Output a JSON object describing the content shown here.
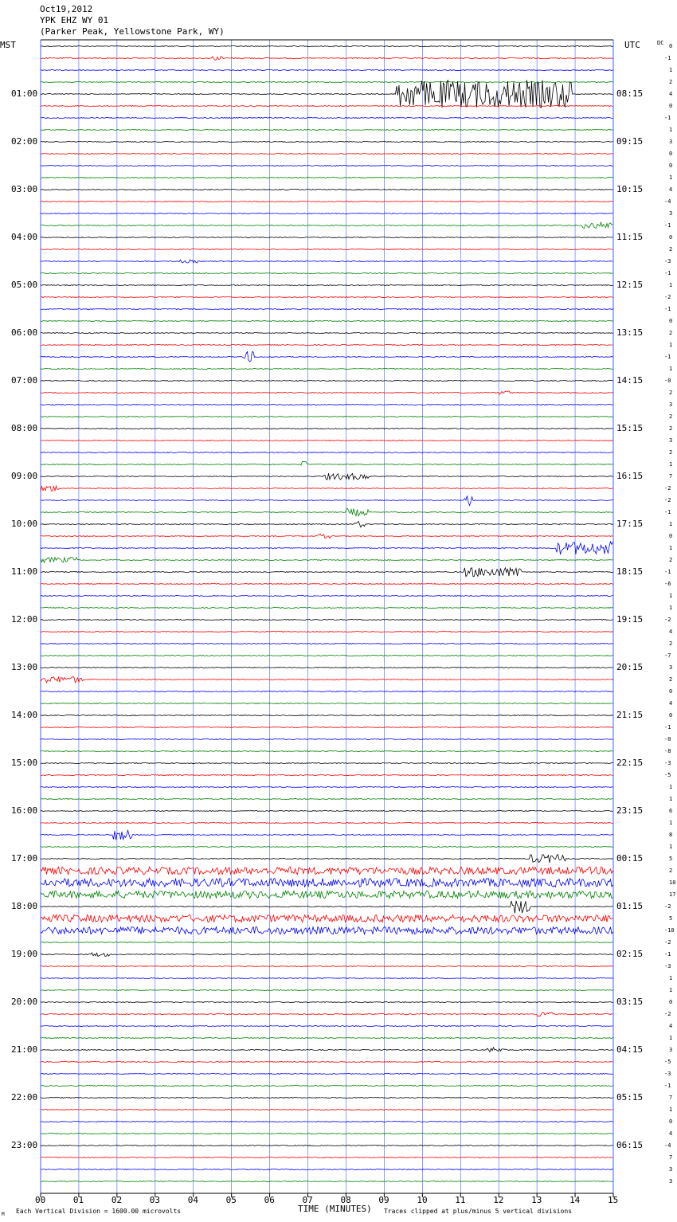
{
  "header": {
    "date": "Oct19,2012",
    "station": "YPK EHZ WY 01",
    "location": "(Parker Peak, Yellowstone Park, WY)"
  },
  "left_zone": "MST",
  "right_zone": "UTC",
  "dc_header": "DC",
  "footer": {
    "scale_note": "Each Vertical Division = 1600.00 microvolts",
    "x_title": "TIME (MINUTES)",
    "clip_note": "Traces clipped at plus/minus 5 vertical divisions",
    "corner_mark": "M"
  },
  "colors": {
    "trace_cycle": [
      "#000000",
      "#ff0000",
      "#0000ff",
      "#008000"
    ],
    "gridline": "#4060ff"
  },
  "chart_data": {
    "type": "line",
    "title": "Oct19,2012 YPK EHZ WY 01 (Parker Peak, Yellowstone Park, WY)",
    "xlabel": "TIME (MINUTES)",
    "x_ticks": [
      "00",
      "01",
      "02",
      "03",
      "04",
      "05",
      "06",
      "07",
      "08",
      "09",
      "10",
      "11",
      "12",
      "13",
      "14",
      "15"
    ],
    "xlim": [
      0,
      15
    ],
    "left_hour_labels": [
      "01:00",
      "02:00",
      "03:00",
      "04:00",
      "05:00",
      "06:00",
      "07:00",
      "08:00",
      "09:00",
      "10:00",
      "11:00",
      "12:00",
      "13:00",
      "14:00",
      "15:00",
      "16:00",
      "17:00",
      "18:00",
      "19:00",
      "20:00",
      "21:00",
      "22:00",
      "23:00"
    ],
    "right_hour_labels": [
      "08:15",
      "09:15",
      "10:15",
      "11:15",
      "12:15",
      "13:15",
      "14:15",
      "15:15",
      "16:15",
      "17:15",
      "18:15",
      "19:15",
      "20:15",
      "21:15",
      "22:15",
      "23:15",
      "00:15",
      "01:15",
      "02:15",
      "03:15",
      "04:15",
      "05:15",
      "06:15"
    ],
    "dc_offsets": [
      "0",
      "-1",
      "1",
      "2",
      "4",
      "0",
      "-1",
      "1",
      "3",
      "0",
      "0",
      "1",
      "4",
      "-4",
      "3",
      "-1",
      "0",
      "2",
      "-3",
      "-1",
      "1",
      "-2",
      "-1",
      "0",
      "2",
      "1",
      "-1",
      "1",
      "-0",
      "2",
      "3",
      "2",
      "2",
      "3",
      "2",
      "1",
      "7",
      "-2",
      "-2",
      "-1",
      "1",
      "0",
      "1",
      "2",
      "-1",
      "-6",
      "1",
      "1",
      "-2",
      "4",
      "2",
      "-7",
      "3",
      "2",
      "0",
      "4",
      "0",
      "-1",
      "-0",
      "-8",
      "-3",
      "-5",
      "1",
      "1",
      "6",
      "1",
      "8",
      "1",
      "5",
      "2",
      "10",
      "17",
      "-2",
      "5",
      "-10",
      "-2",
      "-1",
      "-3",
      "1",
      "1",
      "0",
      "-2",
      "4",
      "1",
      "3",
      "-5",
      "-3",
      "-1",
      "7",
      "1",
      "0",
      "4",
      "-4",
      "7",
      "3",
      "3"
    ],
    "trace_count": 96,
    "trace_minutes": 15,
    "events": [
      {
        "trace": 1,
        "start_min": 4.5,
        "end_min": 4.8,
        "amp": 0.4
      },
      {
        "trace": 4,
        "start_min": 9.3,
        "end_min": 13.9,
        "amp": 2.6
      },
      {
        "trace": 18,
        "start_min": 3.6,
        "end_min": 4.1,
        "amp": 0.3
      },
      {
        "trace": 15,
        "start_min": 14.2,
        "end_min": 15.0,
        "amp": 0.6
      },
      {
        "trace": 26,
        "start_min": 5.3,
        "end_min": 5.6,
        "amp": 1.0
      },
      {
        "trace": 29,
        "start_min": 12.0,
        "end_min": 12.3,
        "amp": 0.4
      },
      {
        "trace": 35,
        "start_min": 6.8,
        "end_min": 7.0,
        "amp": 0.6
      },
      {
        "trace": 36,
        "start_min": 7.4,
        "end_min": 8.6,
        "amp": 0.6
      },
      {
        "trace": 37,
        "start_min": 0.0,
        "end_min": 0.5,
        "amp": 0.6
      },
      {
        "trace": 38,
        "start_min": 11.1,
        "end_min": 11.3,
        "amp": 1.0
      },
      {
        "trace": 39,
        "start_min": 8.0,
        "end_min": 8.6,
        "amp": 0.7
      },
      {
        "trace": 40,
        "start_min": 8.2,
        "end_min": 8.5,
        "amp": 0.6
      },
      {
        "trace": 41,
        "start_min": 7.2,
        "end_min": 7.6,
        "amp": 0.4
      },
      {
        "trace": 42,
        "start_min": 13.5,
        "end_min": 15.0,
        "amp": 1.2
      },
      {
        "trace": 43,
        "start_min": 0.0,
        "end_min": 1.0,
        "amp": 0.5
      },
      {
        "trace": 44,
        "start_min": 11.0,
        "end_min": 12.6,
        "amp": 0.9
      },
      {
        "trace": 53,
        "start_min": 0.0,
        "end_min": 1.1,
        "amp": 0.6
      },
      {
        "trace": 66,
        "start_min": 1.9,
        "end_min": 2.4,
        "amp": 1.0
      },
      {
        "trace": 68,
        "start_min": 12.8,
        "end_min": 13.8,
        "amp": 0.8
      },
      {
        "trace": 69,
        "start_min": 0.0,
        "end_min": 15.0,
        "amp": 0.7
      },
      {
        "trace": 70,
        "start_min": 0.0,
        "end_min": 15.0,
        "amp": 0.8
      },
      {
        "trace": 71,
        "start_min": 0.0,
        "end_min": 15.0,
        "amp": 0.7
      },
      {
        "trace": 72,
        "start_min": 12.3,
        "end_min": 12.8,
        "amp": 1.3
      },
      {
        "trace": 73,
        "start_min": 0.0,
        "end_min": 15.0,
        "amp": 0.7
      },
      {
        "trace": 74,
        "start_min": 0.0,
        "end_min": 15.0,
        "amp": 0.7
      },
      {
        "trace": 76,
        "start_min": 1.3,
        "end_min": 1.8,
        "amp": 0.4
      },
      {
        "trace": 81,
        "start_min": 13.0,
        "end_min": 13.4,
        "amp": 0.4
      },
      {
        "trace": 84,
        "start_min": 11.7,
        "end_min": 12.2,
        "amp": 0.5
      }
    ]
  }
}
